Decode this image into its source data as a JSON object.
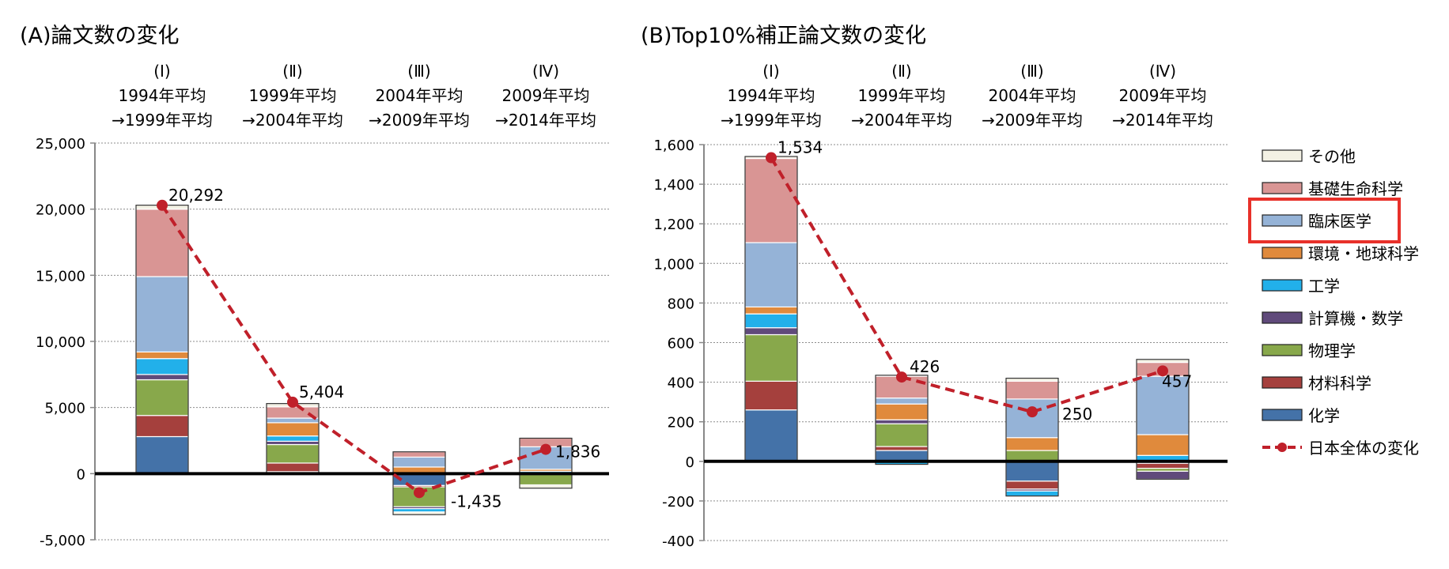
{
  "legend": {
    "items": [
      {
        "key": "other",
        "label": "その他",
        "color": "#f3f1e4",
        "kind": "box"
      },
      {
        "key": "basic_life",
        "label": "基礎生命科学",
        "color": "#d99594",
        "kind": "box"
      },
      {
        "key": "clinical",
        "label": "臨床医学",
        "color": "#95b3d7",
        "kind": "box"
      },
      {
        "key": "environment",
        "label": "環境・地球科学",
        "color": "#e08a3c",
        "kind": "box"
      },
      {
        "key": "engineering",
        "label": "工学",
        "color": "#22b0ea",
        "kind": "box"
      },
      {
        "key": "computer_math",
        "label": "計算機・数学",
        "color": "#604a7b",
        "kind": "box"
      },
      {
        "key": "physics",
        "label": "物理学",
        "color": "#88a84b",
        "kind": "box"
      },
      {
        "key": "materials",
        "label": "材料科学",
        "color": "#a5403d",
        "kind": "box"
      },
      {
        "key": "chemistry",
        "label": "化学",
        "color": "#4472a8",
        "kind": "box"
      },
      {
        "key": "total",
        "label": "日本全体の変化",
        "color": "#c0202a",
        "kind": "line"
      }
    ],
    "highlight_key": "clinical",
    "highlight_color": "#e8312a"
  },
  "chart_data": [
    {
      "id": "A",
      "type": "bar",
      "stacked": true,
      "title": "(A)論文数の変化",
      "period_headers": [
        {
          "roman": "(Ⅰ)",
          "from": "1994年平均",
          "to": "→1999年平均"
        },
        {
          "roman": "(Ⅱ)",
          "from": "1999年平均",
          "to": "→2004年平均"
        },
        {
          "roman": "(Ⅲ)",
          "from": "2004年平均",
          "to": "→2009年平均"
        },
        {
          "roman": "(Ⅳ)",
          "from": "2009年平均",
          "to": "→2014年平均"
        }
      ],
      "ylim": [
        -5000,
        25000
      ],
      "yticks": [
        -5000,
        0,
        5000,
        10000,
        15000,
        20000,
        25000
      ],
      "ytick_labels": [
        "-5,000",
        "0",
        "5,000",
        "10,000",
        "15,000",
        "20,000",
        "25,000"
      ],
      "series": [
        {
          "key": "chemistry",
          "values": [
            2800,
            150,
            -900,
            0
          ]
        },
        {
          "key": "materials",
          "values": [
            1600,
            650,
            -100,
            0
          ]
        },
        {
          "key": "physics",
          "values": [
            2700,
            1400,
            -1500,
            -850
          ]
        },
        {
          "key": "computer_math",
          "values": [
            400,
            250,
            -150,
            80
          ]
        },
        {
          "key": "engineering",
          "values": [
            1200,
            400,
            -250,
            100
          ]
        },
        {
          "key": "environment",
          "values": [
            500,
            1000,
            500,
            150
          ]
        },
        {
          "key": "clinical",
          "values": [
            5700,
            350,
            750,
            1700
          ]
        },
        {
          "key": "basic_life",
          "values": [
            5100,
            850,
            400,
            650
          ]
        },
        {
          "key": "other",
          "values": [
            300,
            250,
            -200,
            -250
          ]
        }
      ],
      "total": {
        "values": [
          20292,
          5404,
          -1435,
          1836
        ],
        "labels": [
          "20,292",
          "5,404",
          "-1,435",
          "1,836"
        ]
      }
    },
    {
      "id": "B",
      "type": "bar",
      "stacked": true,
      "title": "(B)Top10%補正論文数の変化",
      "period_headers": [
        {
          "roman": "(Ⅰ)",
          "from": "1994年平均",
          "to": "→1999年平均"
        },
        {
          "roman": "(Ⅱ)",
          "from": "1999年平均",
          "to": "→2004年平均"
        },
        {
          "roman": "(Ⅲ)",
          "from": "2004年平均",
          "to": "→2009年平均"
        },
        {
          "roman": "(Ⅳ)",
          "from": "2009年平均",
          "to": "→2014年平均"
        }
      ],
      "ylim": [
        -400,
        1600
      ],
      "yticks": [
        -400,
        -200,
        0,
        200,
        400,
        600,
        800,
        1000,
        1200,
        1400,
        1600
      ],
      "ytick_labels": [
        "-400",
        "-200",
        "0",
        "200",
        "400",
        "600",
        "800",
        "1,000",
        "1,200",
        "1,400",
        "1,600"
      ],
      "series": [
        {
          "key": "chemistry",
          "values": [
            260,
            55,
            -100,
            -10
          ]
        },
        {
          "key": "materials",
          "values": [
            145,
            20,
            -40,
            -25
          ]
        },
        {
          "key": "physics",
          "values": [
            235,
            115,
            55,
            -15
          ]
        },
        {
          "key": "computer_math",
          "values": [
            35,
            20,
            -10,
            -40
          ]
        },
        {
          "key": "engineering",
          "values": [
            70,
            -15,
            -25,
            30
          ]
        },
        {
          "key": "environment",
          "values": [
            35,
            80,
            65,
            105
          ]
        },
        {
          "key": "clinical",
          "values": [
            325,
            30,
            195,
            295
          ]
        },
        {
          "key": "basic_life",
          "values": [
            425,
            110,
            90,
            70
          ]
        },
        {
          "key": "other",
          "values": [
            10,
            5,
            15,
            15
          ]
        }
      ],
      "total": {
        "values": [
          1534,
          426,
          250,
          457
        ],
        "labels": [
          "1,534",
          "426",
          "250",
          "457"
        ]
      }
    }
  ]
}
